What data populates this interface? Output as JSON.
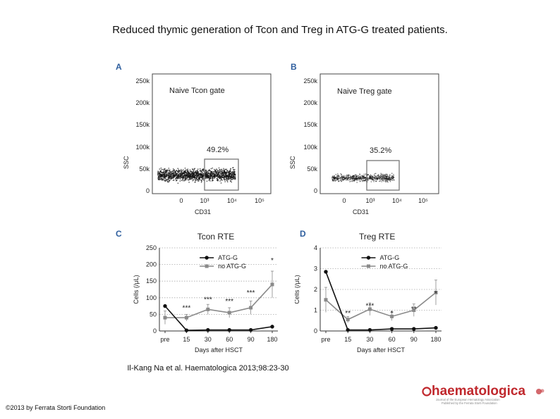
{
  "title": "Reduced thymic generation of Tcon and Treg in ATG-G treated patients.",
  "citation": "Il-Kang Na et al. Haematologica 2013;98:23-30",
  "copyright": "©2013 by Ferrata Storti Foundation",
  "logo": {
    "name": "haematologica",
    "tagline1": "Journal of the European Hematology Association",
    "tagline2": "Published by the Ferrata Storti Foundation",
    "color": "#c0282d"
  },
  "panels": {
    "A": {
      "letter": "A",
      "gate_label": "Naive Tcon gate",
      "percent": "49.2%",
      "ylabel": "SSC",
      "xlabel": "CD31",
      "yticks": [
        "250k",
        "200k",
        "150k",
        "100k",
        "50k",
        "0"
      ],
      "xticks": [
        "0",
        "10³",
        "10⁴",
        "10⁵"
      ]
    },
    "B": {
      "letter": "B",
      "gate_label": "Naive Treg gate",
      "percent": "35.2%",
      "ylabel": "SSC",
      "xlabel": "CD31",
      "yticks": [
        "250k",
        "200k",
        "150k",
        "100k",
        "50k",
        "0"
      ],
      "xticks": [
        "0",
        "10³",
        "10⁴",
        "10⁵"
      ]
    },
    "C": {
      "letter": "C"
    },
    "D": {
      "letter": "D"
    }
  },
  "chart_data": [
    {
      "type": "line",
      "title": "Tcon RTE",
      "xlabel": "Days after HSCT",
      "ylabel": "Cells (/μL)",
      "categories": [
        "pre",
        "15",
        "30",
        "60",
        "90",
        "180"
      ],
      "ylim": [
        0,
        250
      ],
      "yticks": [
        0,
        50,
        100,
        150,
        200,
        250
      ],
      "grid": true,
      "legend": "top",
      "series": [
        {
          "name": "ATG-G",
          "color": "#111111",
          "marker": "circle",
          "values": [
            75,
            2,
            3,
            3,
            3,
            13
          ]
        },
        {
          "name": "no ATG-G",
          "color": "#8a8a8a",
          "marker": "square",
          "values": [
            40,
            40,
            65,
            55,
            70,
            140
          ],
          "err": [
            20,
            10,
            15,
            15,
            20,
            40
          ]
        }
      ],
      "annotations": [
        {
          "text": "***",
          "x": "15",
          "y": 62
        },
        {
          "text": "***",
          "x": "30",
          "y": 88
        },
        {
          "text": "***",
          "x": "60",
          "y": 83
        },
        {
          "text": "***",
          "x": "90",
          "y": 108
        },
        {
          "text": "*",
          "x": "180",
          "y": 205
        }
      ]
    },
    {
      "type": "line",
      "title": "Treg RTE",
      "xlabel": "Days after HSCT",
      "ylabel": "Cells (/μL)",
      "categories": [
        "pre",
        "15",
        "30",
        "60",
        "90",
        "180"
      ],
      "ylim": [
        0,
        4
      ],
      "yticks": [
        0,
        1,
        2,
        3,
        4
      ],
      "grid": true,
      "legend": "top",
      "series": [
        {
          "name": "ATG-G",
          "color": "#111111",
          "marker": "circle",
          "values": [
            2.85,
            0.05,
            0.05,
            0.1,
            0.1,
            0.15
          ]
        },
        {
          "name": "no ATG-G",
          "color": "#8a8a8a",
          "marker": "square",
          "values": [
            1.5,
            0.55,
            1.05,
            0.7,
            1.0,
            1.85
          ],
          "err": [
            0.6,
            0.15,
            0.3,
            0.2,
            0.3,
            0.6
          ]
        }
      ],
      "annotations": [
        {
          "text": "**",
          "x": "15",
          "y": 0.75
        },
        {
          "text": "***",
          "x": "30",
          "y": 1.1
        },
        {
          "text": "*",
          "x": "60",
          "y": 0.75
        },
        {
          "text": "**",
          "x": "90",
          "y": 0.95
        },
        {
          "text": "*",
          "x": "180",
          "y": 1.7
        }
      ]
    }
  ]
}
